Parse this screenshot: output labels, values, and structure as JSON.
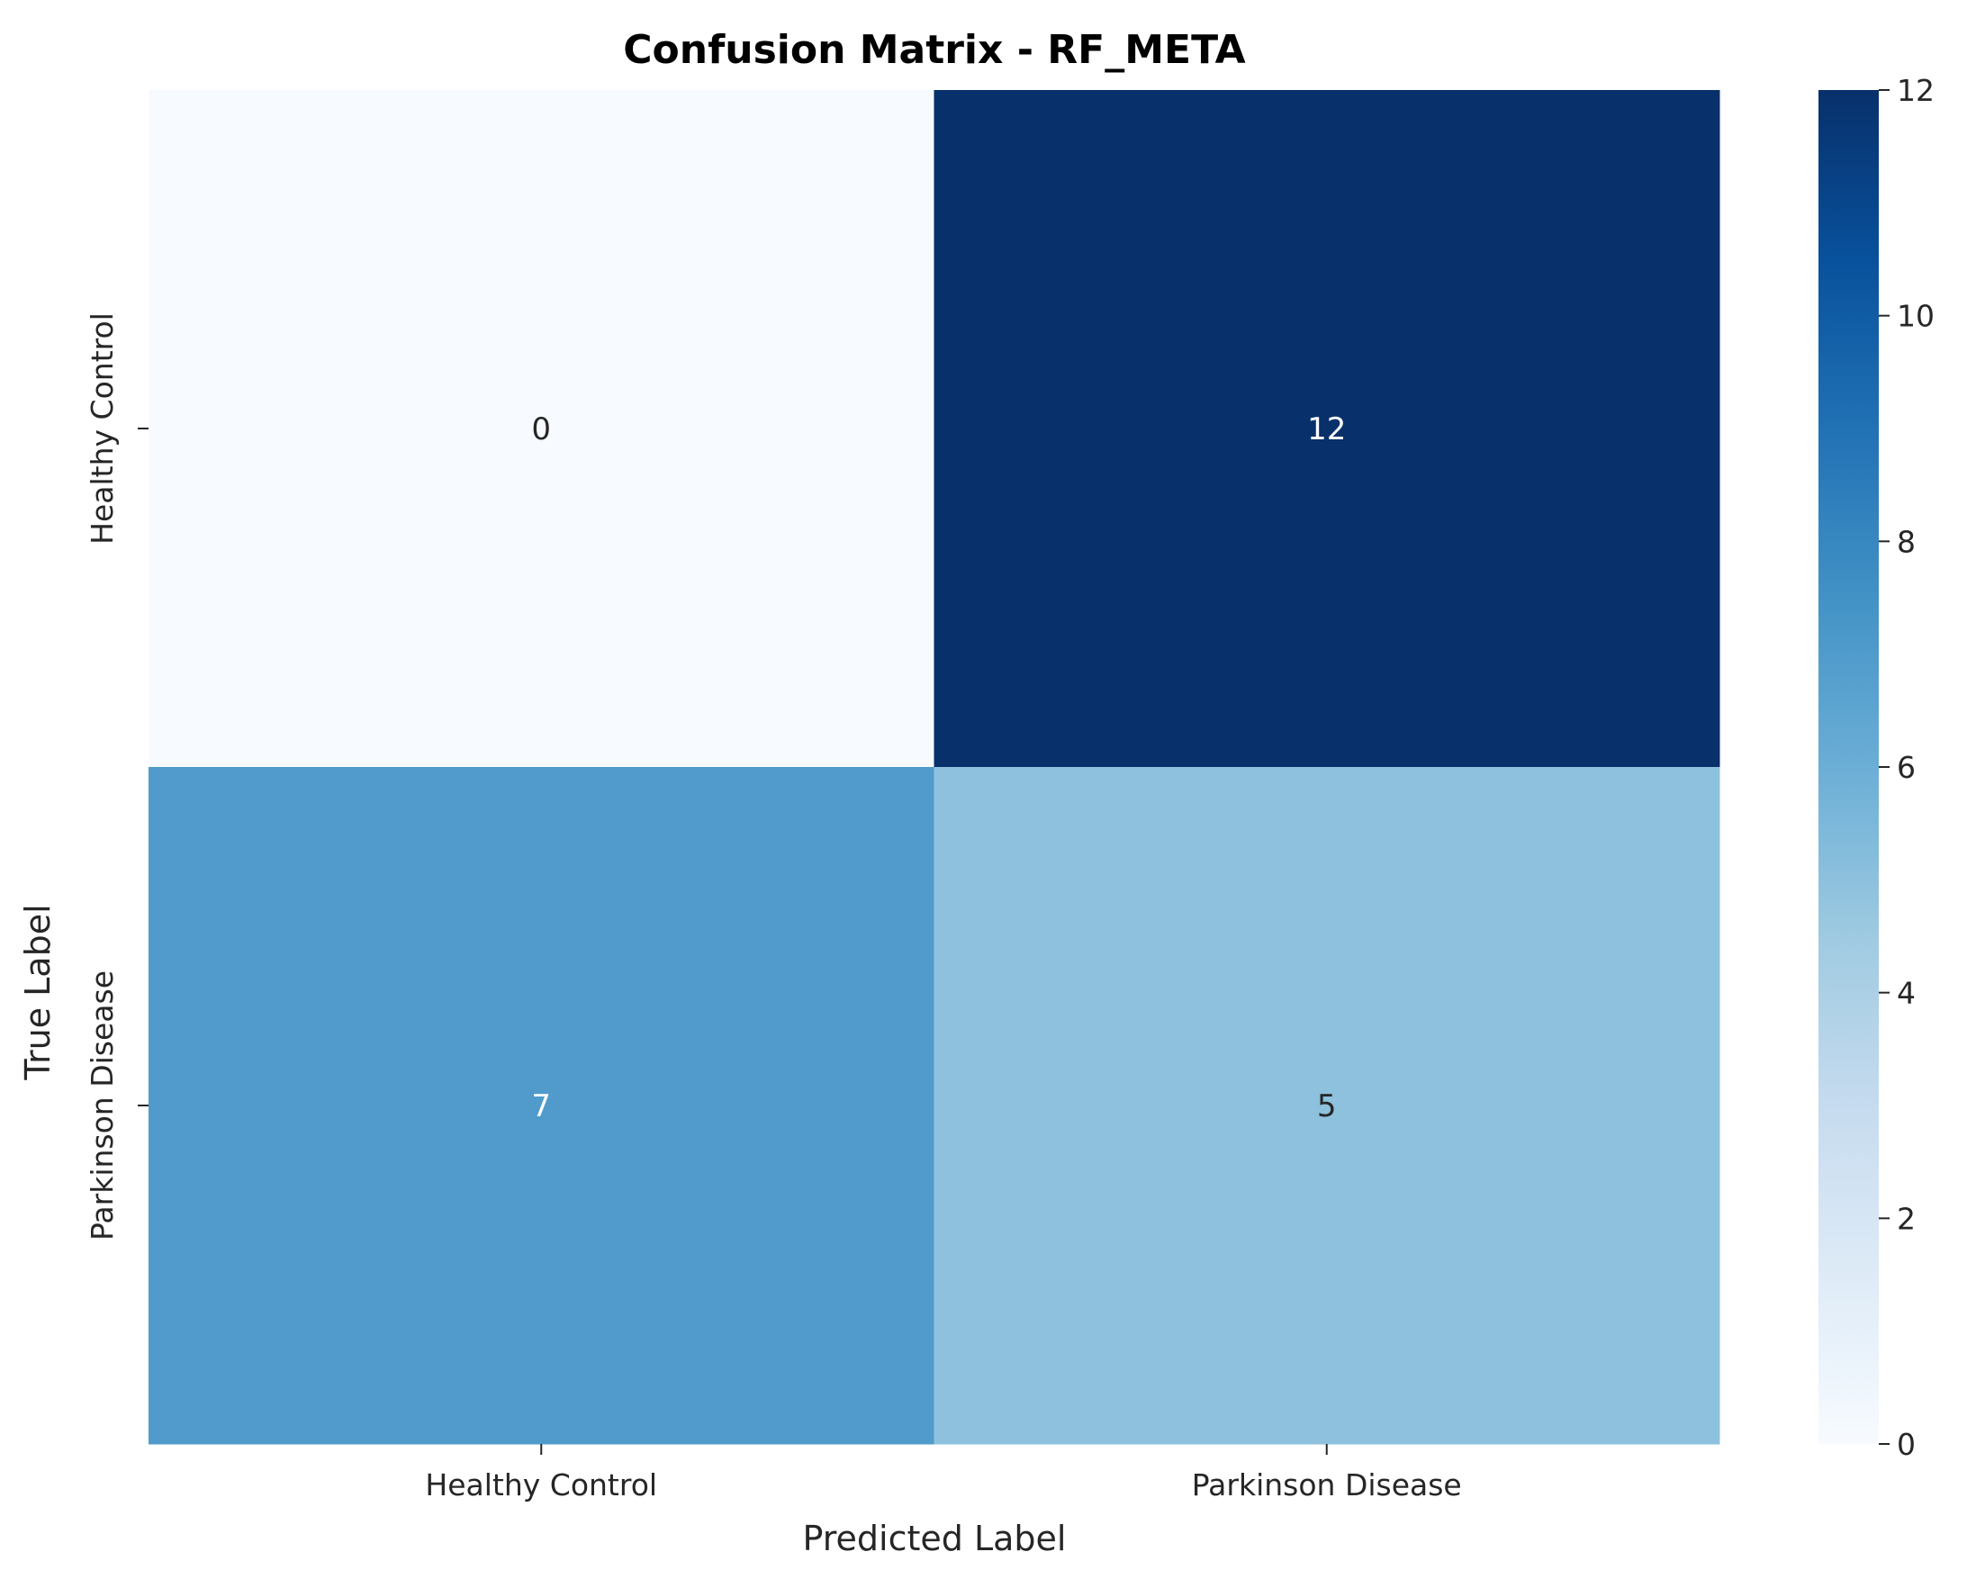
{
  "chart_data": {
    "type": "heatmap",
    "title": "Confusion Matrix - RF_META",
    "xlabel": "Predicted Label",
    "ylabel": "True Label",
    "x_categories": [
      "Healthy Control",
      "Parkinson Disease"
    ],
    "y_categories": [
      "Healthy Control",
      "Parkinson Disease"
    ],
    "values": [
      [
        0,
        12
      ],
      [
        7,
        5
      ]
    ],
    "colormap": "Blues",
    "colorbar": {
      "range": [
        0,
        12
      ],
      "ticks": [
        0,
        2,
        4,
        6,
        8,
        10,
        12
      ]
    },
    "annot_colors": {
      "light": "#ffffff",
      "dark": "#262626"
    }
  }
}
